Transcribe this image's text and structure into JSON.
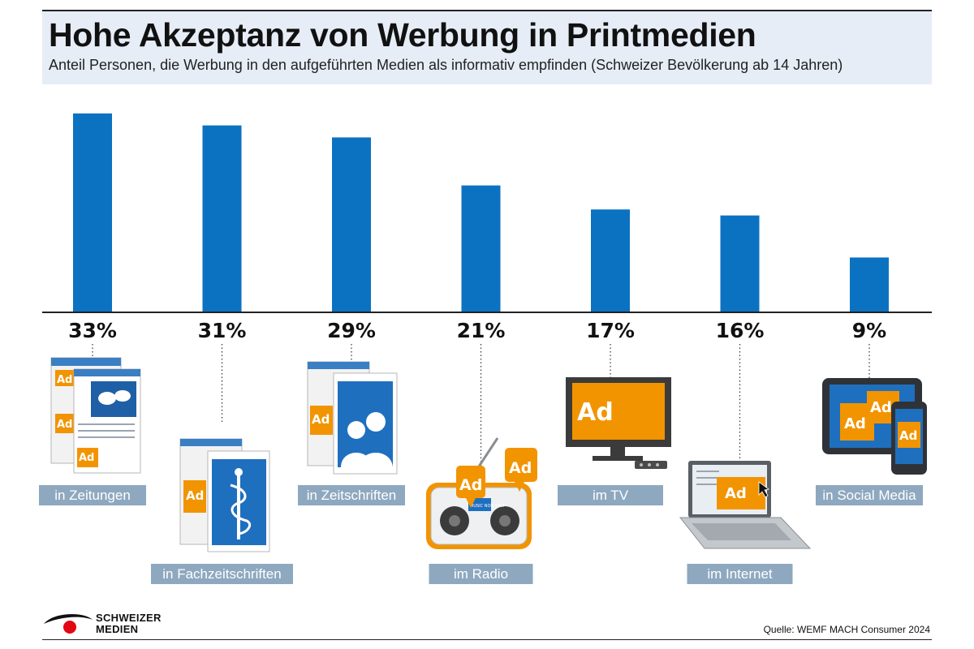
{
  "chart_data": {
    "type": "bar",
    "title": "Hohe Akzeptanz von Werbung in Printmedien",
    "subtitle": "Anteil Personen, die Werbung in den aufgeführten Medien als informativ empfinden (Schweizer Bevölkerung ab 14 Jahren)",
    "categories": [
      "in Zeitungen",
      "in Fachzeitschriften",
      "in Zeitschriften",
      "im Radio",
      "im TV",
      "im Internet",
      "in Social Media"
    ],
    "values": [
      33,
      31,
      29,
      21,
      17,
      16,
      9
    ],
    "value_labels": [
      "33%",
      "31%",
      "29%",
      "21%",
      "17%",
      "16%",
      "9%"
    ],
    "xlabel": "",
    "ylabel": "",
    "ylim": [
      0,
      35
    ],
    "grid": false,
    "bar_color": "#0b72c2",
    "label_box_color": "#8ea8bf",
    "accent_color": "#f29400"
  },
  "icons": [
    "newspaper-icon",
    "journal-icon",
    "magazine-icon",
    "radio-icon",
    "tv-icon",
    "laptop-icon",
    "tablet-phone-icon"
  ],
  "ad_text": "Ad",
  "radio_display": "MUSIC NON STOP",
  "footer": {
    "logo_line1": "SCHWEIZER",
    "logo_line2": "MEDIEN",
    "source": "Quelle: WEMF MACH Consumer 2024"
  }
}
